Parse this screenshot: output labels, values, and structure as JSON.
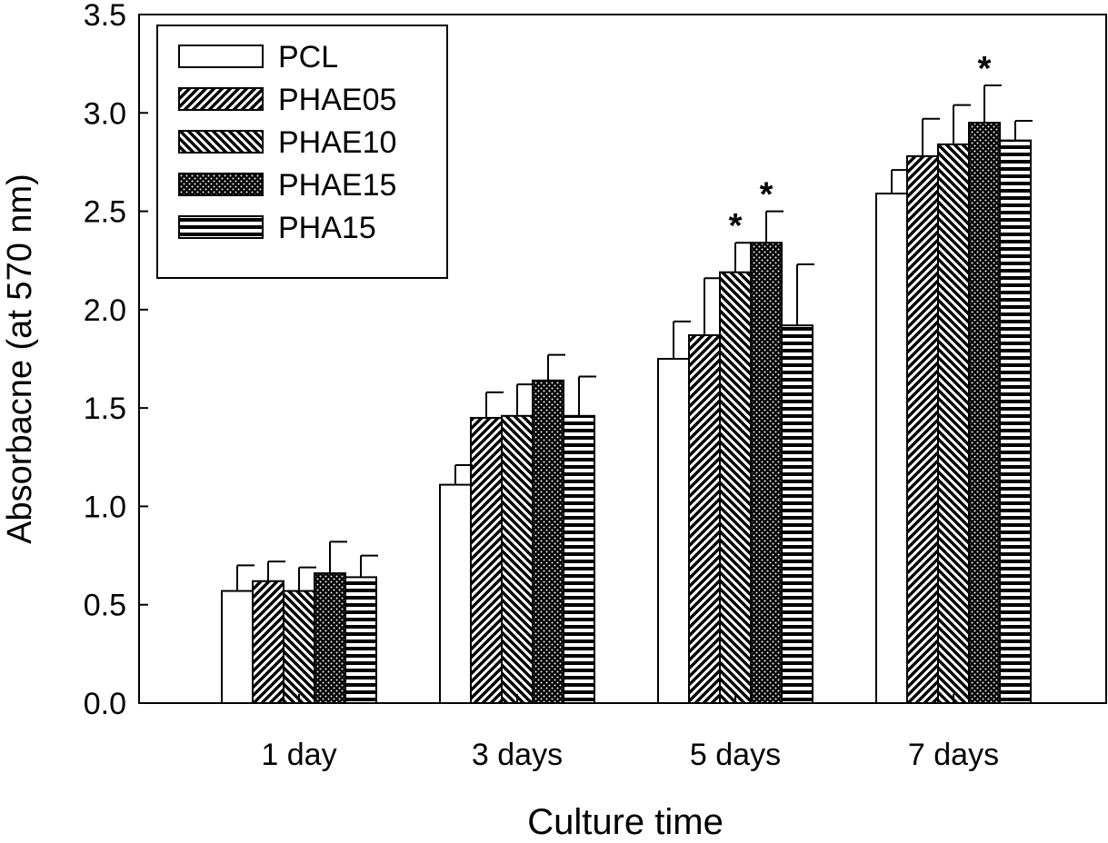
{
  "chart_data": {
    "type": "bar",
    "xlabel": "Culture time",
    "ylabel": "Absorbacne (at 570 nm)",
    "ylim": [
      0,
      3.5
    ],
    "yticks": [
      "0.0",
      "0.5",
      "1.0",
      "1.5",
      "2.0",
      "2.5",
      "3.0",
      "3.5"
    ],
    "categories": [
      "1 day",
      "3 days",
      "5 days",
      "7 days"
    ],
    "legend_position": "top-left",
    "series": [
      {
        "name": "PCL",
        "pattern": "blank",
        "values": [
          0.57,
          1.11,
          1.75,
          2.59
        ],
        "errors": [
          0.13,
          0.1,
          0.19,
          0.12
        ],
        "significant": [
          false,
          false,
          false,
          false
        ]
      },
      {
        "name": "PHAE05",
        "pattern": "diag-right",
        "values": [
          0.62,
          1.45,
          1.87,
          2.78
        ],
        "errors": [
          0.1,
          0.13,
          0.29,
          0.19
        ],
        "significant": [
          false,
          false,
          false,
          false
        ]
      },
      {
        "name": "PHAE10",
        "pattern": "diag-left",
        "values": [
          0.57,
          1.46,
          2.19,
          2.84
        ],
        "errors": [
          0.12,
          0.16,
          0.15,
          0.2
        ],
        "significant": [
          false,
          false,
          true,
          false
        ]
      },
      {
        "name": "PHAE15",
        "pattern": "dots",
        "values": [
          0.66,
          1.64,
          2.34,
          2.95
        ],
        "errors": [
          0.16,
          0.13,
          0.16,
          0.19
        ],
        "significant": [
          false,
          false,
          true,
          true
        ]
      },
      {
        "name": "PHA15",
        "pattern": "horizontal",
        "values": [
          0.64,
          1.46,
          1.92,
          2.86
        ],
        "errors": [
          0.11,
          0.2,
          0.31,
          0.1
        ],
        "significant": [
          false,
          false,
          false,
          false
        ]
      }
    ],
    "significance_marker": "*",
    "grid": false
  }
}
